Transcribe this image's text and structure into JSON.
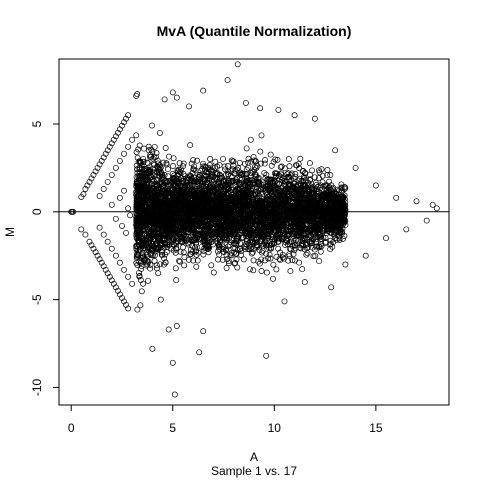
{
  "chart_data": {
    "type": "scatter",
    "title": "MvA (Quantile Normalization)",
    "xlabel": "A",
    "subtitle": "Sample 1 vs. 17",
    "ylabel": "M",
    "xlim": [
      -0.6,
      18.6
    ],
    "ylim": [
      -11.0,
      8.7
    ],
    "x_ticks": [
      0,
      5,
      10,
      15
    ],
    "y_ticks": [
      -10,
      -5,
      0,
      5
    ],
    "reference_line_y": 0,
    "marker": "open-circle",
    "grid": false,
    "legend": "none",
    "cloud_summary": {
      "dense_core_A_range": [
        3.2,
        13.5
      ],
      "dense_core_M_spread": [
        -3.5,
        3.5
      ],
      "note_points": "approximate; thousands of overlapping points"
    },
    "points": [
      [
        0.0,
        0.0
      ],
      [
        0.05,
        0.0
      ],
      [
        0.1,
        0.0
      ],
      [
        0.5,
        0.85
      ],
      [
        0.6,
        1.0
      ],
      [
        0.7,
        1.3
      ],
      [
        0.8,
        1.5
      ],
      [
        0.9,
        1.7
      ],
      [
        1.0,
        1.9
      ],
      [
        1.1,
        2.1
      ],
      [
        1.2,
        2.3
      ],
      [
        1.3,
        2.5
      ],
      [
        1.4,
        2.7
      ],
      [
        1.5,
        2.9
      ],
      [
        1.6,
        3.1
      ],
      [
        1.7,
        3.3
      ],
      [
        1.8,
        3.5
      ],
      [
        1.9,
        3.7
      ],
      [
        2.0,
        3.9
      ],
      [
        2.1,
        4.1
      ],
      [
        2.2,
        4.3
      ],
      [
        2.3,
        4.5
      ],
      [
        2.4,
        4.7
      ],
      [
        2.5,
        4.9
      ],
      [
        2.6,
        5.1
      ],
      [
        2.7,
        5.3
      ],
      [
        2.8,
        5.5
      ],
      [
        3.2,
        6.6
      ],
      [
        3.25,
        6.7
      ],
      [
        0.5,
        -1.0
      ],
      [
        0.7,
        -1.3
      ],
      [
        0.9,
        -1.7
      ],
      [
        1.0,
        -1.9
      ],
      [
        1.1,
        -2.1
      ],
      [
        1.2,
        -2.3
      ],
      [
        1.3,
        -2.5
      ],
      [
        1.4,
        -2.7
      ],
      [
        1.5,
        -2.9
      ],
      [
        1.6,
        -3.1
      ],
      [
        1.7,
        -3.3
      ],
      [
        1.8,
        -3.5
      ],
      [
        1.9,
        -3.7
      ],
      [
        2.0,
        -3.9
      ],
      [
        2.1,
        -4.1
      ],
      [
        2.2,
        -4.3
      ],
      [
        2.3,
        -4.5
      ],
      [
        2.4,
        -4.7
      ],
      [
        2.5,
        -4.9
      ],
      [
        2.6,
        -5.1
      ],
      [
        2.7,
        -5.3
      ],
      [
        2.8,
        -5.5
      ],
      [
        1.4,
        0.9
      ],
      [
        1.6,
        1.3
      ],
      [
        1.8,
        1.7
      ],
      [
        2.0,
        2.1
      ],
      [
        2.2,
        2.5
      ],
      [
        2.4,
        2.9
      ],
      [
        2.6,
        3.3
      ],
      [
        2.8,
        3.7
      ],
      [
        3.0,
        4.1
      ],
      [
        1.4,
        -0.9
      ],
      [
        1.6,
        -1.3
      ],
      [
        1.8,
        -1.7
      ],
      [
        2.0,
        -2.1
      ],
      [
        2.2,
        -2.5
      ],
      [
        2.4,
        -2.9
      ],
      [
        2.6,
        -3.3
      ],
      [
        2.8,
        -3.7
      ],
      [
        3.0,
        -4.1
      ],
      [
        2.0,
        0.4
      ],
      [
        2.2,
        -0.4
      ],
      [
        2.4,
        0.8
      ],
      [
        2.5,
        -0.8
      ],
      [
        2.6,
        1.2
      ],
      [
        2.7,
        -1.2
      ],
      [
        2.8,
        0.2
      ],
      [
        2.9,
        -0.2
      ],
      [
        8.2,
        8.4
      ],
      [
        7.7,
        7.5
      ],
      [
        5.0,
        6.8
      ],
      [
        5.2,
        6.5
      ],
      [
        6.5,
        6.9
      ],
      [
        4.6,
        6.4
      ],
      [
        5.8,
        6.0
      ],
      [
        8.6,
        6.2
      ],
      [
        9.3,
        5.9
      ],
      [
        10.2,
        5.8
      ],
      [
        11.0,
        5.5
      ],
      [
        12.0,
        5.3
      ],
      [
        13.0,
        3.5
      ],
      [
        14.0,
        2.5
      ],
      [
        15.0,
        1.5
      ],
      [
        16.0,
        0.8
      ],
      [
        17.0,
        0.6
      ],
      [
        17.8,
        0.4
      ],
      [
        18.0,
        0.2
      ],
      [
        17.5,
        -0.5
      ],
      [
        16.5,
        -1.0
      ],
      [
        15.5,
        -1.5
      ],
      [
        14.5,
        -2.5
      ],
      [
        4.0,
        -7.8
      ],
      [
        4.8,
        -6.7
      ],
      [
        5.2,
        -6.5
      ],
      [
        5.0,
        -8.6
      ],
      [
        6.5,
        -6.8
      ],
      [
        6.3,
        -8.0
      ],
      [
        9.6,
        -8.2
      ],
      [
        5.1,
        -10.4
      ],
      [
        12.8,
        -4.3
      ],
      [
        10.5,
        -5.1
      ],
      [
        11.5,
        -4.0
      ],
      [
        13.5,
        -3.0
      ]
    ]
  }
}
